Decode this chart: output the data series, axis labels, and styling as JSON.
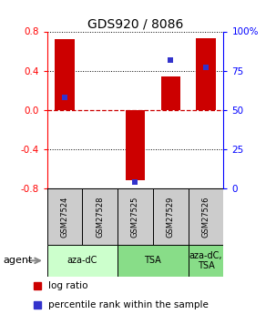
{
  "title": "GDS920 / 8086",
  "samples": [
    "GSM27524",
    "GSM27528",
    "GSM27525",
    "GSM27529",
    "GSM27526"
  ],
  "log_ratios": [
    0.72,
    0.0,
    -0.72,
    0.34,
    0.73
  ],
  "percentile_ranks_pct": [
    58,
    0,
    4,
    82,
    77
  ],
  "percentile_ranks_show": [
    true,
    false,
    true,
    true,
    true
  ],
  "ylim": [
    -0.8,
    0.8
  ],
  "yticks_left": [
    -0.8,
    -0.4,
    0.0,
    0.4,
    0.8
  ],
  "yticks_right": [
    0,
    25,
    50,
    75,
    100
  ],
  "bar_color": "#cc0000",
  "marker_color": "#3333cc",
  "bar_width": 0.55,
  "grid_color": "#000000",
  "zero_line_color": "#cc0000",
  "background_color": "#ffffff",
  "plot_bg_color": "#ffffff",
  "sample_box_color": "#cccccc",
  "agent_group1_color": "#ccffcc",
  "agent_group2_color": "#88dd88",
  "agent_label": "agent",
  "legend_items": [
    {
      "color": "#cc0000",
      "label": "log ratio"
    },
    {
      "color": "#3333cc",
      "label": "percentile rank within the sample"
    }
  ]
}
